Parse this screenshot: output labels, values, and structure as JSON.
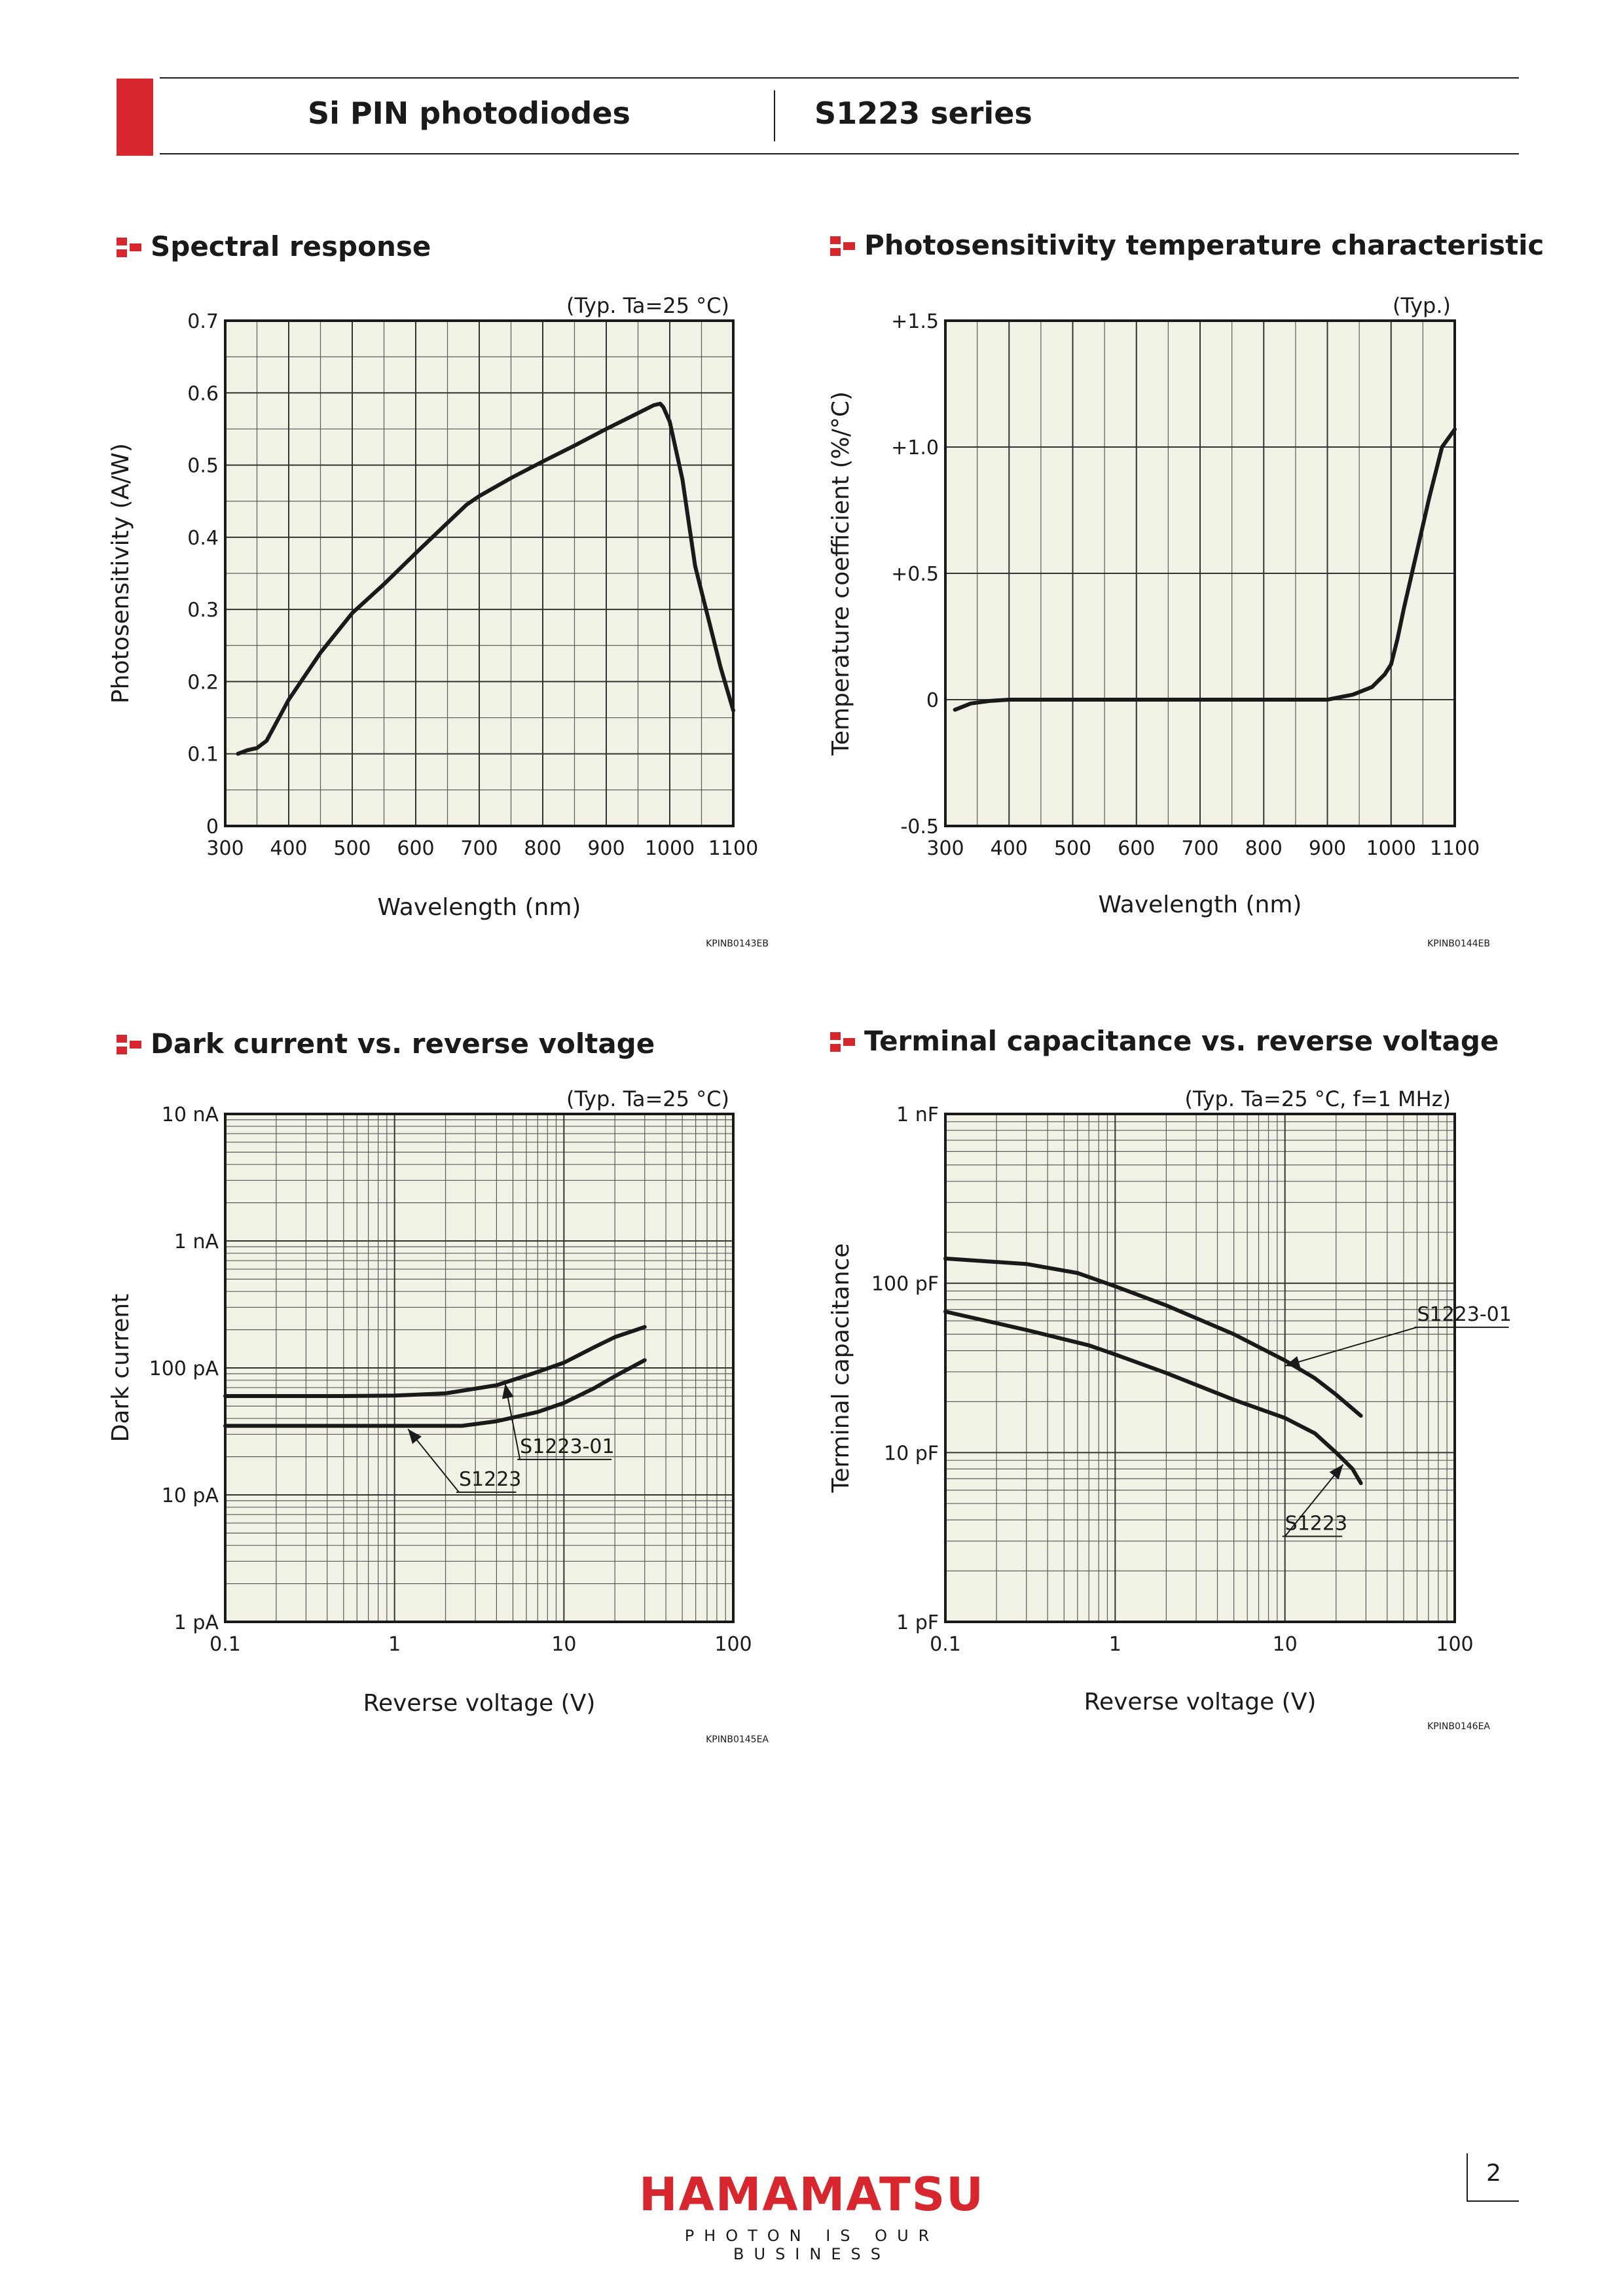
{
  "header": {
    "left_title": "Si PIN photodiodes",
    "right_title": "S1223 series"
  },
  "brand": {
    "logo_text": "HAMAMATSU",
    "tagline": "PHOTON IS OUR BUSINESS",
    "accent": "#d7262e"
  },
  "page_number": "2",
  "chart_data": [
    {
      "id": "spectral",
      "type": "line",
      "title": "Spectral response",
      "condition": "(Typ. Ta=25 °C)",
      "xlabel": "Wavelength (nm)",
      "ylabel": "Photosensitivity (A/W)",
      "xscale": "linear",
      "yscale": "linear",
      "xlim": [
        300,
        1100
      ],
      "ylim": [
        0,
        0.7
      ],
      "xticks": [
        300,
        400,
        500,
        600,
        700,
        800,
        900,
        1000,
        1100
      ],
      "xtick_labels": [
        "300",
        "400",
        "500",
        "600",
        "700",
        "800",
        "900",
        "1000",
        "1100"
      ],
      "yticks": [
        0,
        0.1,
        0.2,
        0.3,
        0.4,
        0.5,
        0.6,
        0.7
      ],
      "ytick_labels": [
        "0",
        "0.1",
        "0.2",
        "0.3",
        "0.4",
        "0.5",
        "0.6",
        "0.7"
      ],
      "grid": true,
      "code": "KPINB0143EB",
      "series": [
        {
          "points": [
            [
              320,
              0.1
            ],
            [
              335,
              0.105
            ],
            [
              350,
              0.108
            ],
            [
              365,
              0.118
            ],
            [
              400,
              0.175
            ],
            [
              450,
              0.24
            ],
            [
              500,
              0.295
            ],
            [
              550,
              0.335
            ],
            [
              600,
              0.378
            ],
            [
              650,
              0.42
            ],
            [
              680,
              0.445
            ],
            [
              700,
              0.457
            ],
            [
              750,
              0.482
            ],
            [
              800,
              0.505
            ],
            [
              850,
              0.527
            ],
            [
              900,
              0.55
            ],
            [
              950,
              0.572
            ],
            [
              975,
              0.583
            ],
            [
              985,
              0.585
            ],
            [
              990,
              0.58
            ],
            [
              1000,
              0.56
            ],
            [
              1020,
              0.48
            ],
            [
              1040,
              0.36
            ],
            [
              1060,
              0.29
            ],
            [
              1080,
              0.22
            ],
            [
              1100,
              0.16
            ]
          ]
        }
      ]
    },
    {
      "id": "tempcoef",
      "type": "line",
      "title": "Photosensitivity temperature characteristic",
      "condition": "(Typ.)",
      "xlabel": "Wavelength (nm)",
      "ylabel": "Temperature coefficient (%/°C)",
      "xscale": "linear",
      "yscale": "linear",
      "xlim": [
        300,
        1100
      ],
      "ylim": [
        -0.5,
        1.5
      ],
      "xticks": [
        300,
        400,
        500,
        600,
        700,
        800,
        900,
        1000,
        1100
      ],
      "xtick_labels": [
        "300",
        "400",
        "500",
        "600",
        "700",
        "800",
        "900",
        "1000",
        "1100"
      ],
      "yticks": [
        -0.5,
        0,
        0.5,
        1.0,
        1.5
      ],
      "ytick_labels": [
        "-0.5",
        "0",
        "+0.5",
        "+1.0",
        "+1.5"
      ],
      "grid": true,
      "code": "KPINB0144EB",
      "series": [
        {
          "points": [
            [
              315,
              -0.04
            ],
            [
              340,
              -0.015
            ],
            [
              370,
              -0.005
            ],
            [
              400,
              0
            ],
            [
              600,
              0
            ],
            [
              800,
              0
            ],
            [
              900,
              0
            ],
            [
              940,
              0.02
            ],
            [
              970,
              0.05
            ],
            [
              990,
              0.1
            ],
            [
              1000,
              0.14
            ],
            [
              1010,
              0.24
            ],
            [
              1020,
              0.36
            ],
            [
              1040,
              0.58
            ],
            [
              1060,
              0.8
            ],
            [
              1080,
              1.0
            ],
            [
              1100,
              1.07
            ]
          ]
        }
      ]
    },
    {
      "id": "darkcurrent",
      "type": "line",
      "title": "Dark current vs. reverse voltage",
      "condition": "(Typ. Ta=25 °C)",
      "xlabel": "Reverse voltage (V)",
      "ylabel": "Dark current",
      "xscale": "log",
      "yscale": "log",
      "xlim": [
        0.1,
        100
      ],
      "ylim": [
        1e-12,
        1e-08
      ],
      "xticks": [
        0.1,
        1,
        10,
        100
      ],
      "xtick_labels": [
        "0.1",
        "1",
        "10",
        "100"
      ],
      "yticks": [
        1e-12,
        1e-11,
        1e-10,
        1e-09,
        1e-08
      ],
      "ytick_labels": [
        "1 pA",
        "10 pA",
        "100 pA",
        "1 nA",
        "10 nA"
      ],
      "grid": true,
      "code": "KPINB0145EA",
      "series": [
        {
          "name": "S1223-01",
          "points": [
            [
              0.1,
              6e-11
            ],
            [
              0.5,
              6e-11
            ],
            [
              1,
              6.05e-11
            ],
            [
              2,
              6.3e-11
            ],
            [
              4,
              7.3e-11
            ],
            [
              7,
              9.3e-11
            ],
            [
              10,
              1.1e-10
            ],
            [
              15,
              1.45e-10
            ],
            [
              20,
              1.75e-10
            ],
            [
              30,
              2.1e-10
            ]
          ]
        },
        {
          "name": "S1223",
          "points": [
            [
              0.1,
              3.5e-11
            ],
            [
              1,
              3.5e-11
            ],
            [
              2.5,
              3.5e-11
            ],
            [
              4,
              3.8e-11
            ],
            [
              7,
              4.5e-11
            ],
            [
              10,
              5.3e-11
            ],
            [
              15,
              6.9e-11
            ],
            [
              20,
              8.6e-11
            ],
            [
              30,
              1.15e-10
            ]
          ]
        }
      ],
      "annotations": [
        {
          "text": "S1223-01",
          "series": "S1223-01",
          "at": [
            4.5,
            7.5e-11
          ],
          "label_at": [
            5.5,
            1.9e-11
          ]
        },
        {
          "text": "S1223",
          "series": "S1223",
          "at": [
            1.2,
            3.3e-11
          ],
          "label_at": [
            2.4,
            1.05e-11
          ]
        }
      ]
    },
    {
      "id": "capacitance",
      "type": "line",
      "title": "Terminal capacitance vs. reverse voltage",
      "condition": "(Typ. Ta=25 °C, f=1 MHz)",
      "xlabel": "Reverse voltage (V)",
      "ylabel": "Terminal capacitance",
      "xscale": "log",
      "yscale": "log",
      "xlim": [
        0.1,
        100
      ],
      "ylim": [
        1e-12,
        1e-09
      ],
      "xticks": [
        0.1,
        1,
        10,
        100
      ],
      "xtick_labels": [
        "0.1",
        "1",
        "10",
        "100"
      ],
      "yticks": [
        1e-12,
        1e-11,
        1e-10,
        1e-09
      ],
      "ytick_labels": [
        "1 pF",
        "10 pF",
        "100 pF",
        "1 nF"
      ],
      "grid": true,
      "code": "KPINB0146EA",
      "series": [
        {
          "name": "S1223-01",
          "points": [
            [
              0.1,
              1.4e-10
            ],
            [
              0.3,
              1.3e-10
            ],
            [
              0.6,
              1.15e-10
            ],
            [
              1,
              9.6e-11
            ],
            [
              2,
              7.4e-11
            ],
            [
              5,
              5e-11
            ],
            [
              10,
              3.5e-11
            ],
            [
              15,
              2.75e-11
            ],
            [
              20,
              2.2e-11
            ],
            [
              28,
              1.65e-11
            ]
          ]
        },
        {
          "name": "S1223",
          "points": [
            [
              0.1,
              6.8e-11
            ],
            [
              0.3,
              5.3e-11
            ],
            [
              0.7,
              4.3e-11
            ],
            [
              1,
              3.8e-11
            ],
            [
              2,
              2.95e-11
            ],
            [
              5,
              2.05e-11
            ],
            [
              10,
              1.6e-11
            ],
            [
              15,
              1.3e-11
            ],
            [
              20,
              1e-11
            ],
            [
              25,
              8e-12
            ],
            [
              28,
              6.6e-12
            ]
          ]
        }
      ],
      "annotations": [
        {
          "text": "S1223-01",
          "series": "S1223-01",
          "at": [
            10,
            3.25e-11
          ],
          "label_at": [
            60,
            5.5e-11
          ]
        },
        {
          "text": "S1223",
          "series": "S1223",
          "at": [
            22,
            8.5e-12
          ],
          "label_at": [
            10,
            3.2e-12
          ]
        }
      ]
    }
  ]
}
